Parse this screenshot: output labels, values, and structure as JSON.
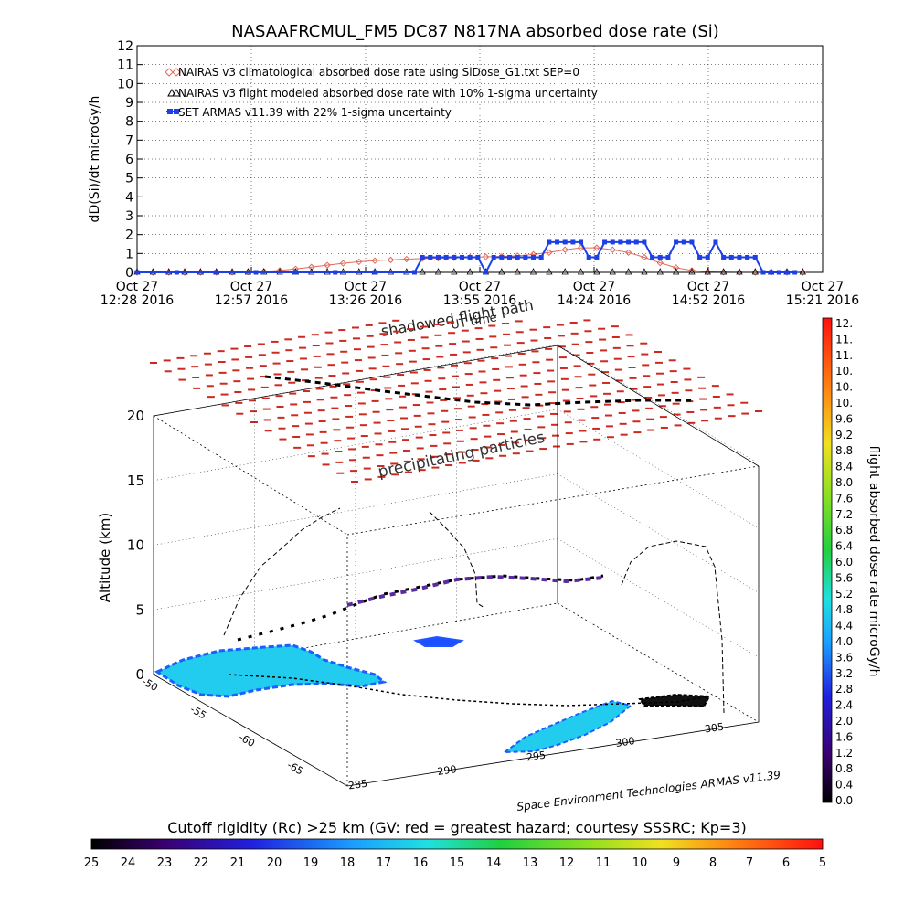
{
  "title": "NASAAFRCMUL_FM5 DC87 N817NA absorbed dose rate (Si)",
  "colors": {
    "climatological": "#e06a5a",
    "modeled": "#000000",
    "measured": "#1c3fe6",
    "grid": "#000000",
    "precip": "#cc2a20",
    "terrain": "#22ccee"
  },
  "chart_data": [
    {
      "type": "line",
      "title": "NASAAFRCMUL_FM5 DC87 N817NA absorbed dose rate (Si)",
      "ylabel": "dD(Si)/dt microGy/h",
      "ylim": [
        0,
        12
      ],
      "yticks": [
        "0",
        "1",
        "2",
        "3",
        "4",
        "5",
        "6",
        "7",
        "8",
        "9",
        "10",
        "11",
        "12"
      ],
      "xticks": [
        {
          "top": "Oct 27",
          "bottom": "12:28 2016"
        },
        {
          "top": "Oct 27",
          "bottom": "12:57 2016"
        },
        {
          "top": "Oct 27",
          "bottom": "13:26 2016"
        },
        {
          "top": "Oct 27",
          "bottom": "13:55 2016"
        },
        {
          "top": "Oct 27",
          "bottom": "14:24 2016"
        },
        {
          "top": "Oct 27",
          "bottom": "14:52 2016"
        },
        {
          "top": "Oct 27",
          "bottom": "15:21 2016"
        }
      ],
      "xlabel_overlap": [
        "shadowed flight path",
        "UT time"
      ],
      "grid": true,
      "legend_position": "top-left",
      "x_units": "minutes after 12:28 UT",
      "xlim": [
        0,
        173
      ],
      "series": [
        {
          "name": "NAIRAS v3 climatological absorbed dose rate using SiDose_G1.txt SEP=0",
          "marker": "diamond",
          "x": [
            0,
            4,
            8,
            12,
            16,
            20,
            24,
            28,
            32,
            36,
            40,
            44,
            48,
            52,
            56,
            60,
            64,
            68,
            72,
            76,
            80,
            84,
            88,
            92,
            96,
            100,
            104,
            108,
            112,
            116,
            120,
            124,
            128,
            132,
            136,
            140,
            144,
            148,
            152,
            156,
            160,
            164,
            168
          ],
          "values": [
            0,
            0,
            0,
            0,
            0,
            0,
            0.01,
            0.02,
            0.05,
            0.1,
            0.18,
            0.28,
            0.38,
            0.48,
            0.56,
            0.62,
            0.66,
            0.7,
            0.73,
            0.75,
            0.77,
            0.8,
            0.82,
            0.84,
            0.88,
            0.95,
            1.05,
            1.2,
            1.3,
            1.3,
            1.2,
            1.05,
            0.8,
            0.5,
            0.25,
            0.1,
            0.03,
            0.01,
            0,
            0,
            0,
            0,
            0
          ]
        },
        {
          "name": "NAIRAS v3 flight modeled absorbed dose rate with 10% 1-sigma uncertainty",
          "marker": "triangle",
          "x": [
            0,
            4,
            8,
            12,
            16,
            20,
            24,
            28,
            32,
            36,
            40,
            44,
            48,
            52,
            56,
            60,
            64,
            68,
            72,
            76,
            80,
            84,
            88,
            92,
            96,
            100,
            104,
            108,
            112,
            116,
            120,
            124,
            128,
            132,
            136,
            140,
            144,
            148,
            152,
            156,
            160,
            164,
            168
          ],
          "values": [
            0,
            0,
            0,
            0,
            0,
            0,
            0,
            0,
            0,
            0,
            0,
            0,
            0,
            0,
            0,
            0,
            0,
            0,
            0,
            0,
            0,
            0,
            0,
            0,
            0,
            0,
            0,
            0,
            0,
            0,
            0,
            0,
            0,
            0,
            0,
            0,
            0,
            0,
            0,
            0,
            0,
            0,
            0
          ]
        },
        {
          "name": "SET ARMAS v11.39 with 22% 1-sigma uncertainty",
          "marker": "filled-square",
          "x": [
            0,
            10,
            20,
            30,
            40,
            50,
            60,
            70,
            72,
            74,
            76,
            78,
            80,
            82,
            84,
            86,
            88,
            90,
            92,
            94,
            96,
            98,
            100,
            102,
            104,
            106,
            108,
            110,
            112,
            114,
            116,
            118,
            120,
            122,
            124,
            126,
            128,
            130,
            132,
            134,
            136,
            138,
            140,
            142,
            144,
            146,
            148,
            150,
            152,
            154,
            156,
            158,
            160,
            162,
            164,
            166
          ],
          "values": [
            0,
            0,
            0,
            0,
            0,
            0,
            0,
            0,
            0.8,
            0.8,
            0.8,
            0.8,
            0.8,
            0.8,
            0.8,
            0.8,
            0,
            0.8,
            0.8,
            0.8,
            0.8,
            0.8,
            0.8,
            0.8,
            1.6,
            1.6,
            1.6,
            1.6,
            1.6,
            0.8,
            0.8,
            1.6,
            1.6,
            1.6,
            1.6,
            1.6,
            1.6,
            0.8,
            0.8,
            0.8,
            1.6,
            1.6,
            1.6,
            0.8,
            0.8,
            1.6,
            0.8,
            0.8,
            0.8,
            0.8,
            0.8,
            0,
            0,
            0,
            0,
            0
          ]
        }
      ]
    },
    {
      "type": "scatter",
      "subtype": "3d-flight-track",
      "zlabel": "Altitude (km)",
      "zlim": [
        0,
        20
      ],
      "zticks": [
        "0",
        "5",
        "10",
        "15",
        "20"
      ],
      "lat_ticks": [
        "-50",
        "-55",
        "-60",
        "-65"
      ],
      "lon_ticks": [
        "285",
        "290",
        "295",
        "300",
        "305"
      ],
      "annotations": [
        "shadowed flight path",
        "UT time",
        "precipitating particles"
      ],
      "credit": "Space Environment Technologies ARMAS v11.39",
      "colorbar": {
        "label": "flight absorbed dose rate microGy/h",
        "ticks": [
          "12.",
          "11.",
          "11.",
          "10.",
          "10.",
          "10.",
          "9.6",
          "9.2",
          "8.8",
          "8.4",
          "8.0",
          "7.6",
          "7.2",
          "6.8",
          "6.4",
          "6.0",
          "5.6",
          "5.2",
          "4.8",
          "4.4",
          "4.0",
          "3.6",
          "3.2",
          "2.8",
          "2.4",
          "2.0",
          "1.6",
          "1.2",
          "0.8",
          "0.4",
          "0.0"
        ]
      }
    },
    {
      "type": "heatmap",
      "subtype": "horizontal-colorbar",
      "title": "Cutoff rigidity (Rc) >25 km (GV: red = greatest hazard; courtesy SSSRC; Kp=3)",
      "ticks": [
        "25",
        "24",
        "23",
        "22",
        "21",
        "20",
        "19",
        "18",
        "17",
        "16",
        "15",
        "14",
        "13",
        "12",
        "11",
        "10",
        "9",
        "8",
        "7",
        "6",
        "5"
      ]
    }
  ]
}
